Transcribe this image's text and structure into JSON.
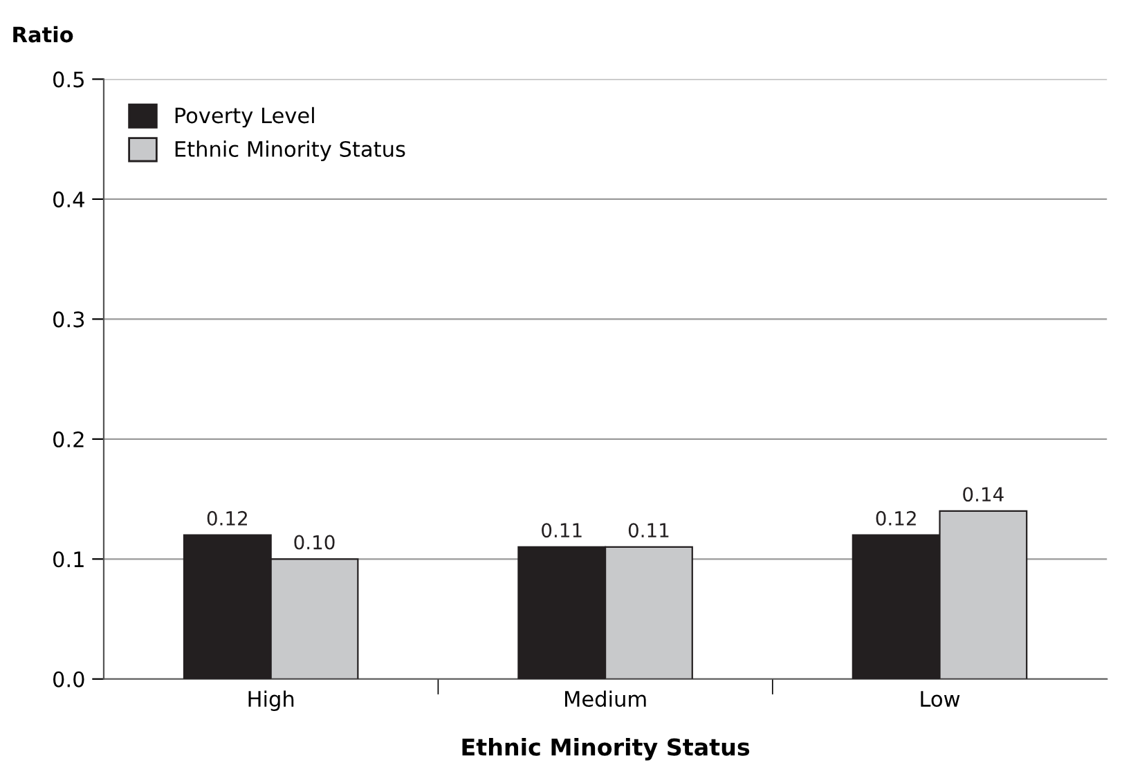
{
  "chart_data": {
    "type": "bar",
    "ylabel": "Ratio",
    "xlabel": "Ethnic Minority Status",
    "categories": [
      "High",
      "Medium",
      "Low"
    ],
    "series": [
      {
        "name": "Poverty Level",
        "color": "#231f20",
        "values": [
          0.12,
          0.11,
          0.12
        ],
        "value_labels": [
          "0.12",
          "0.11",
          "0.12"
        ]
      },
      {
        "name": "Ethnic Minority Status",
        "color": "#c8c9cb",
        "values": [
          0.1,
          0.11,
          0.14
        ],
        "value_labels": [
          "0.10",
          "0.11",
          "0.14"
        ]
      }
    ],
    "ylim": [
      0,
      0.5
    ],
    "yticks": [
      {
        "value": 0,
        "label": "0.0"
      },
      {
        "value": 0.1,
        "label": "0.1"
      },
      {
        "value": 0.2,
        "label": "0.2"
      },
      {
        "value": 0.3,
        "label": "0.3"
      },
      {
        "value": 0.4,
        "label": "0.4"
      },
      {
        "value": 0.5,
        "label": "0.5"
      }
    ],
    "grid": "y",
    "legend": "top left"
  }
}
